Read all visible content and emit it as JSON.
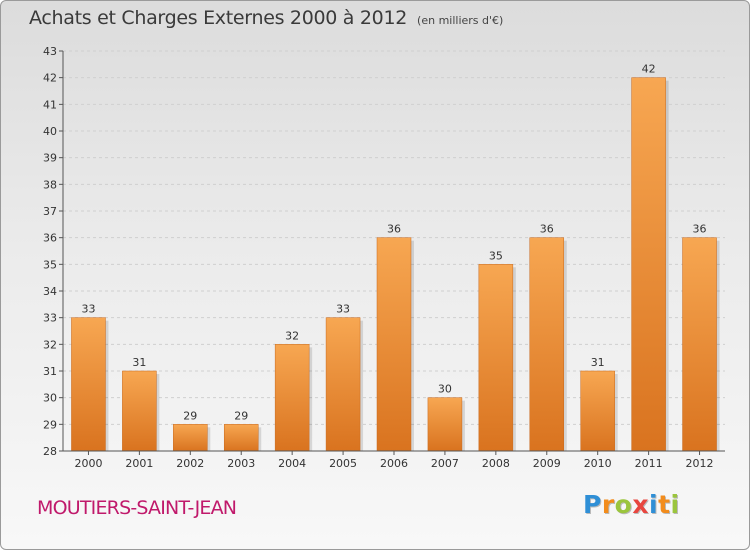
{
  "header": {
    "title": "Achats et Charges Externes 2000 à 2012",
    "unit": "(en milliers d'€)"
  },
  "footer": {
    "place": "MOUTIERS-SAINT-JEAN",
    "logo_text": "Proxiti",
    "logo_colors": [
      "#2f8fd6",
      "#f28c1c",
      "#9bc53d",
      "#e8463f",
      "#2f8fd6",
      "#f28c1c",
      "#9bc53d"
    ]
  },
  "colors": {
    "bar_light": "#f7a752",
    "bar_dark": "#d9731f",
    "bar_edge": "#c8681c",
    "place": "#c0196b"
  },
  "chart_data": {
    "type": "bar",
    "title": "Achats et Charges Externes 2000 à 2012",
    "subtitle": "(en milliers d'€)",
    "categories": [
      "2000",
      "2001",
      "2002",
      "2003",
      "2004",
      "2005",
      "2006",
      "2007",
      "2008",
      "2009",
      "2010",
      "2011",
      "2012"
    ],
    "values": [
      33,
      31,
      29,
      29,
      32,
      33,
      36,
      30,
      35,
      36,
      31,
      42,
      36
    ],
    "ylim": [
      28,
      43
    ],
    "yticks": [
      28,
      29,
      30,
      31,
      32,
      33,
      34,
      35,
      36,
      37,
      38,
      39,
      40,
      41,
      42,
      43
    ],
    "grid": "horizontal dashed"
  }
}
